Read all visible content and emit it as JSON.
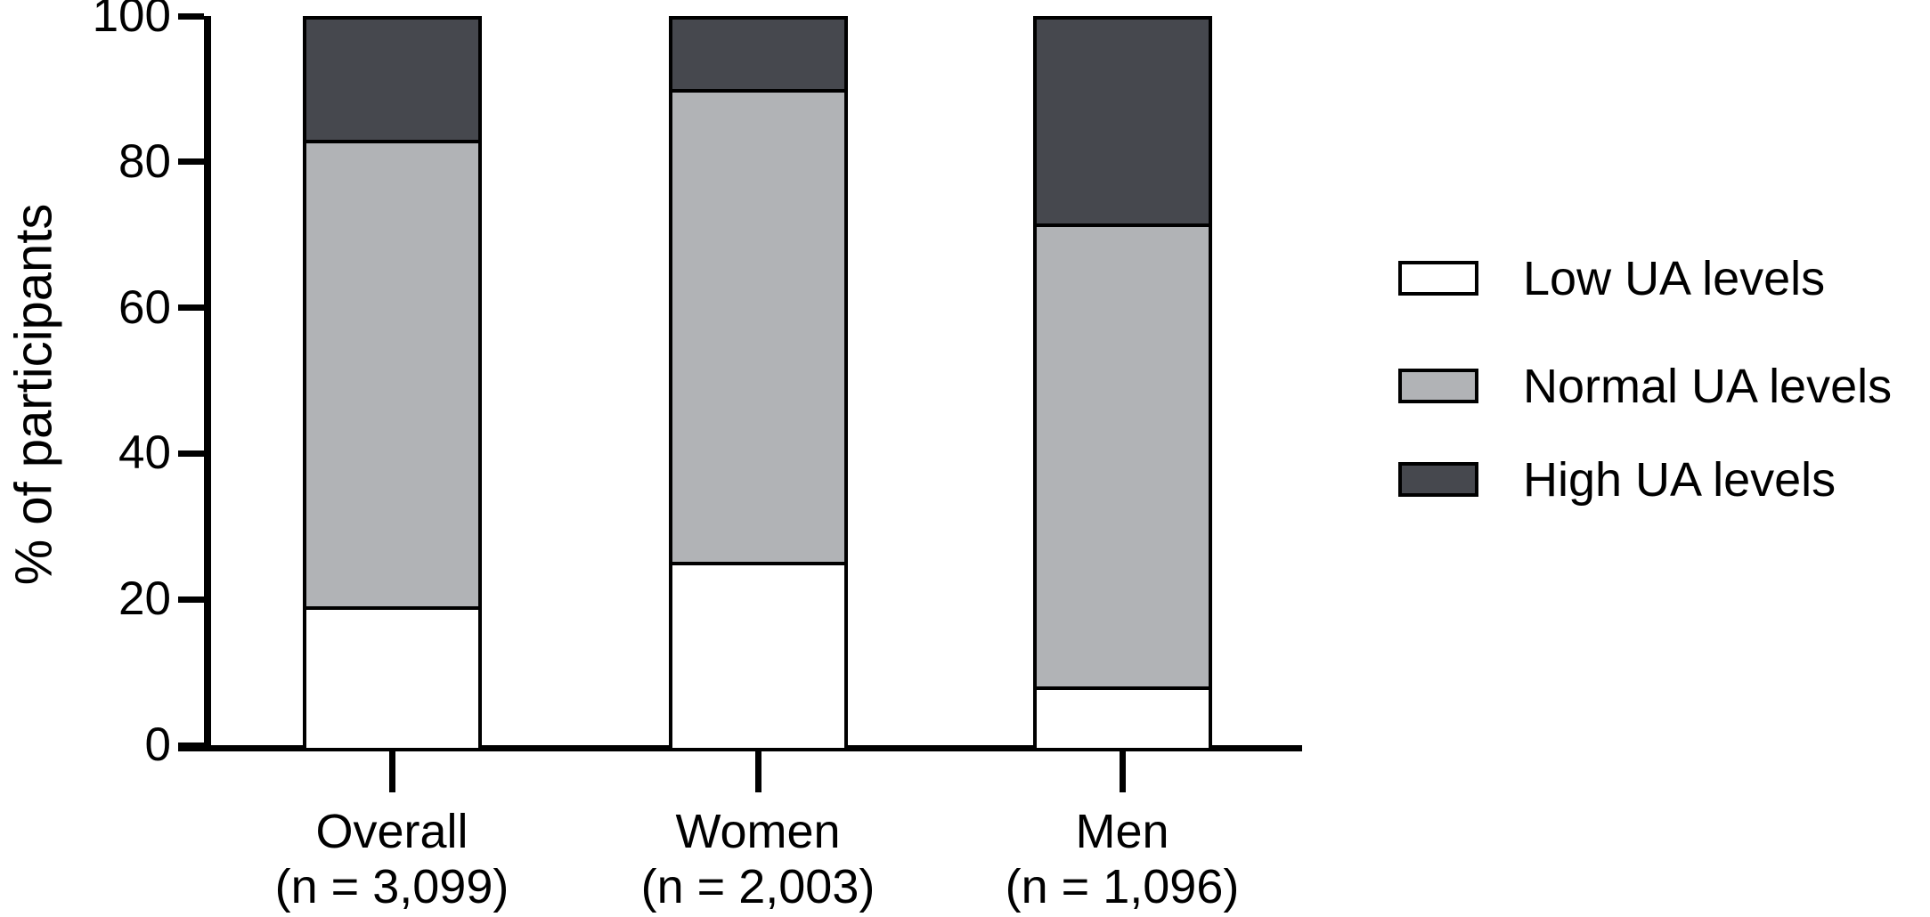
{
  "figure": {
    "background_color": "#ffffff",
    "line_color": "#000000",
    "text_color": "#000000"
  },
  "chart_data": {
    "type": "bar",
    "stacked": true,
    "title": "",
    "xlabel": "",
    "ylabel": "% of participants",
    "ylim": [
      0,
      100
    ],
    "yticks": [
      0,
      20,
      40,
      60,
      80,
      100
    ],
    "grid": false,
    "legend_position": "right",
    "categories": [
      {
        "label": "Overall",
        "sublabel": "(n = 3,099)"
      },
      {
        "label": "Women",
        "sublabel": "(n = 2,003)"
      },
      {
        "label": "Men",
        "sublabel": "(n = 1,096)"
      }
    ],
    "series": [
      {
        "name": "Low UA levels",
        "color": "#ffffff",
        "values": [
          19,
          25,
          8
        ]
      },
      {
        "name": "Normal UA levels",
        "color": "#b1b3b6",
        "values": [
          64,
          65,
          63.5
        ]
      },
      {
        "name": "High UA levels",
        "color": "#46484e",
        "values": [
          17,
          10,
          28.5
        ]
      }
    ]
  }
}
